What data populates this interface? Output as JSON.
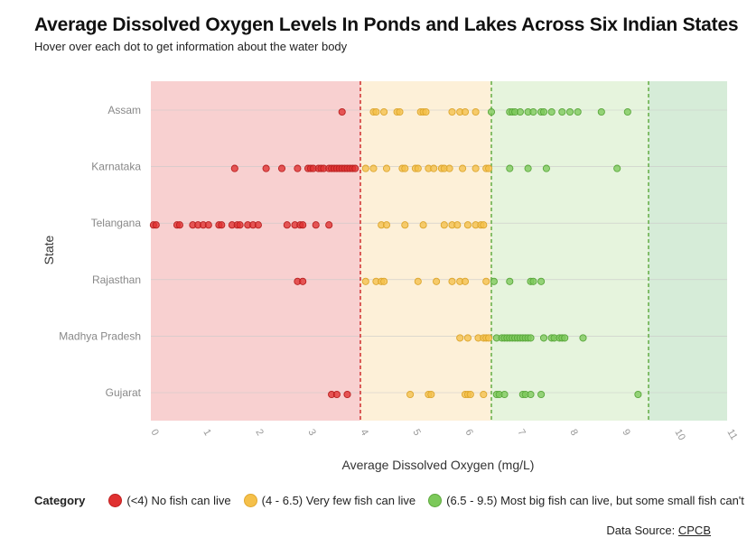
{
  "header": {
    "title": "Average Dissolved Oxygen Levels In Ponds and Lakes Across Six Indian States",
    "subtitle": "Hover over each dot to get information about the water body"
  },
  "legend": {
    "title": "Category",
    "items": [
      {
        "label": "(<4) No fish can live",
        "color": "#e03131"
      },
      {
        "label": "(4 - 6.5) Very few fish can live",
        "color": "#f5c04a"
      },
      {
        "label": "(6.5 - 9.5) Most big fish can live, but some small fish can't",
        "color": "#7cc95a"
      }
    ]
  },
  "source": {
    "prefix": "Data Source: ",
    "link": "CPCB"
  },
  "chart_data": {
    "type": "scatter",
    "title": "Average Dissolved Oxygen Levels In Ponds and Lakes Across Six Indian States",
    "xlabel": "Average Dissolved Oxygen (mg/L)",
    "ylabel": "State",
    "xlim": [
      0,
      11
    ],
    "x_ticks": [
      "0",
      "1",
      "2",
      "3",
      "4",
      "5",
      "6",
      "7",
      "8",
      "9",
      "10",
      "11"
    ],
    "categories": [
      "Assam",
      "Karnataka",
      "Telangana",
      "Rajasthan",
      "Madhya Pradesh",
      "Gujarat"
    ],
    "bands": [
      {
        "from": 0,
        "to": 4,
        "color": "#f8d0d0"
      },
      {
        "from": 4,
        "to": 6.5,
        "color": "#fdf0d8"
      },
      {
        "from": 6.5,
        "to": 9.5,
        "color": "#e6f4dd"
      },
      {
        "from": 9.5,
        "to": 11,
        "color": "#d6ecd8"
      }
    ],
    "thresholds": [
      {
        "x": 4,
        "color": "#cc2222"
      },
      {
        "x": 6.5,
        "color": "#5aa83a"
      },
      {
        "x": 9.5,
        "color": "#5aa83a"
      }
    ],
    "grid": "horizontal",
    "series": [
      {
        "category": "Assam",
        "values": [
          3.65,
          4.25,
          4.3,
          4.45,
          4.7,
          4.75,
          5.15,
          5.2,
          5.25,
          5.75,
          5.9,
          6.0,
          6.2,
          6.5,
          6.85,
          6.9,
          6.95,
          7.05,
          7.2,
          7.3,
          7.45,
          7.5,
          7.65,
          7.85,
          8.0,
          8.15,
          8.6,
          9.1
        ]
      },
      {
        "category": "Karnataka",
        "values": [
          1.6,
          2.2,
          2.5,
          2.8,
          3.0,
          3.05,
          3.1,
          3.2,
          3.25,
          3.3,
          3.4,
          3.45,
          3.5,
          3.55,
          3.6,
          3.65,
          3.7,
          3.75,
          3.8,
          3.85,
          3.9,
          4.1,
          4.25,
          4.5,
          4.8,
          4.85,
          5.05,
          5.1,
          5.3,
          5.4,
          5.55,
          5.6,
          5.7,
          5.95,
          6.2,
          6.4,
          6.45,
          6.85,
          7.2,
          7.55,
          8.9
        ]
      },
      {
        "category": "Telangana",
        "values": [
          0.05,
          0.1,
          0.5,
          0.55,
          0.8,
          0.9,
          1.0,
          1.1,
          1.3,
          1.35,
          1.55,
          1.65,
          1.7,
          1.85,
          1.95,
          2.05,
          2.6,
          2.75,
          2.85,
          2.9,
          3.15,
          3.4,
          4.4,
          4.5,
          4.85,
          5.2,
          5.6,
          5.75,
          5.85,
          6.05,
          6.2,
          6.3,
          6.35
        ]
      },
      {
        "category": "Rajasthan",
        "values": [
          2.8,
          2.9,
          4.1,
          4.3,
          4.4,
          4.45,
          5.1,
          5.45,
          5.75,
          5.9,
          6.0,
          6.4,
          6.55,
          6.85,
          7.25,
          7.3,
          7.45
        ]
      },
      {
        "category": "Madhya Pradesh",
        "values": [
          5.9,
          6.05,
          6.25,
          6.35,
          6.4,
          6.45,
          6.6,
          6.7,
          6.75,
          6.8,
          6.85,
          6.9,
          6.95,
          7.0,
          7.05,
          7.1,
          7.15,
          7.2,
          7.25,
          7.5,
          7.65,
          7.7,
          7.8,
          7.85,
          7.9,
          8.25
        ]
      },
      {
        "category": "Gujarat",
        "values": [
          3.45,
          3.55,
          3.75,
          4.95,
          5.3,
          5.35,
          6.0,
          6.05,
          6.1,
          6.35,
          6.6,
          6.65,
          6.75,
          7.1,
          7.15,
          7.25,
          7.45,
          9.3
        ]
      }
    ]
  }
}
